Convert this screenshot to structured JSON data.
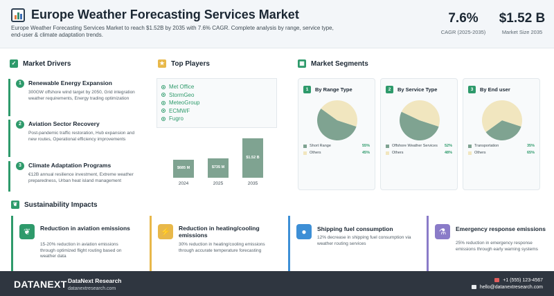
{
  "header": {
    "title": "Europe Weather Forecasting Services Market",
    "subtitle": "Europe Weather Forecasting Services Market to reach $1.52B by 2035 with 7.6% CAGR. Complete analysis by range, service type, end-user & climate adaptation trends.",
    "kpis": [
      {
        "value": "7.6%",
        "label": "CAGR (2025-2035)"
      },
      {
        "value": "$1.52 B",
        "label": "Market Size 2035"
      }
    ]
  },
  "drivers": {
    "heading": "Market Drivers",
    "items": [
      {
        "num": "1",
        "title": "Renewable Energy Expansion",
        "desc": "300GW offshore wind target by 2050, Grid integration weather requirements, Energy trading optimization"
      },
      {
        "num": "2",
        "title": "Aviation Sector Recovery",
        "desc": "Post-pandemic traffic restoration, Hub expansion and new routes, Operational efficiency improvements"
      },
      {
        "num": "3",
        "title": "Climate Adaptation Programs",
        "desc": "€12B annual resilience investment, Extreme weather preparedness, Urban heat island management"
      }
    ]
  },
  "players": {
    "heading": "Top Players",
    "items": [
      "Met Office",
      "StormGeo",
      "MeteoGroup",
      "ECMWF",
      "Fugro"
    ]
  },
  "chart_data": {
    "type": "bar",
    "categories": [
      "2024",
      "2025",
      "2035"
    ],
    "values": [
      0.685,
      0.735,
      1.52
    ],
    "labels": [
      "$685 M",
      "$735 M",
      "$1.52 B"
    ],
    "ylim": [
      0,
      1.6
    ],
    "grid": false
  },
  "segments": {
    "heading": "Market Segments",
    "cards": [
      {
        "num": "1",
        "title": "By Range Type",
        "items": [
          {
            "label": "Short Range",
            "pct": "55%",
            "value": 55,
            "color": "#7fa391"
          },
          {
            "label": "Others",
            "pct": "45%",
            "value": 45,
            "color": "#f1e6bf"
          }
        ]
      },
      {
        "num": "2",
        "title": "By Service Type",
        "items": [
          {
            "label": "Offshore Weather Services",
            "pct": "52%",
            "value": 52,
            "color": "#7fa391"
          },
          {
            "label": "Others",
            "pct": "48%",
            "value": 48,
            "color": "#f1e6bf"
          }
        ]
      },
      {
        "num": "3",
        "title": "By End user",
        "items": [
          {
            "label": "Transportation",
            "pct": "35%",
            "value": 35,
            "color": "#7fa391"
          },
          {
            "label": "Others",
            "pct": "65%",
            "value": 65,
            "color": "#f1e6bf"
          }
        ]
      }
    ]
  },
  "sustainability": {
    "heading": "Sustainability Impacts",
    "items": [
      {
        "title": "Reduction in aviation emissions",
        "desc": "15-20% reduction in aviation emissions through optimized flight routing based on weather data",
        "color": "#2e9a6b",
        "icon": "leaf-icon"
      },
      {
        "title": "Reduction in heating/cooling emissions",
        "desc": "30% reduction in heating/cooling emissions through accurate temperature forecasting",
        "color": "#e8b84a",
        "icon": "lightning-icon"
      },
      {
        "title": "Shipping fuel consumption",
        "desc": "12% decrease in shipping fuel consumption via weather routing services",
        "color": "#3d8fd6",
        "icon": "droplet-icon"
      },
      {
        "title": "Emergency response emissions",
        "desc": "25% reduction in emergency response emissions through early warning systems",
        "color": "#8a7bc8",
        "icon": "flask-icon"
      }
    ]
  },
  "footer": {
    "logo": "DATANEXT",
    "company": "DataNext Research",
    "url": "datanextresearch.com",
    "phone": "+1 (555) 123-4567",
    "email": "hello@datanextresearch.com"
  }
}
